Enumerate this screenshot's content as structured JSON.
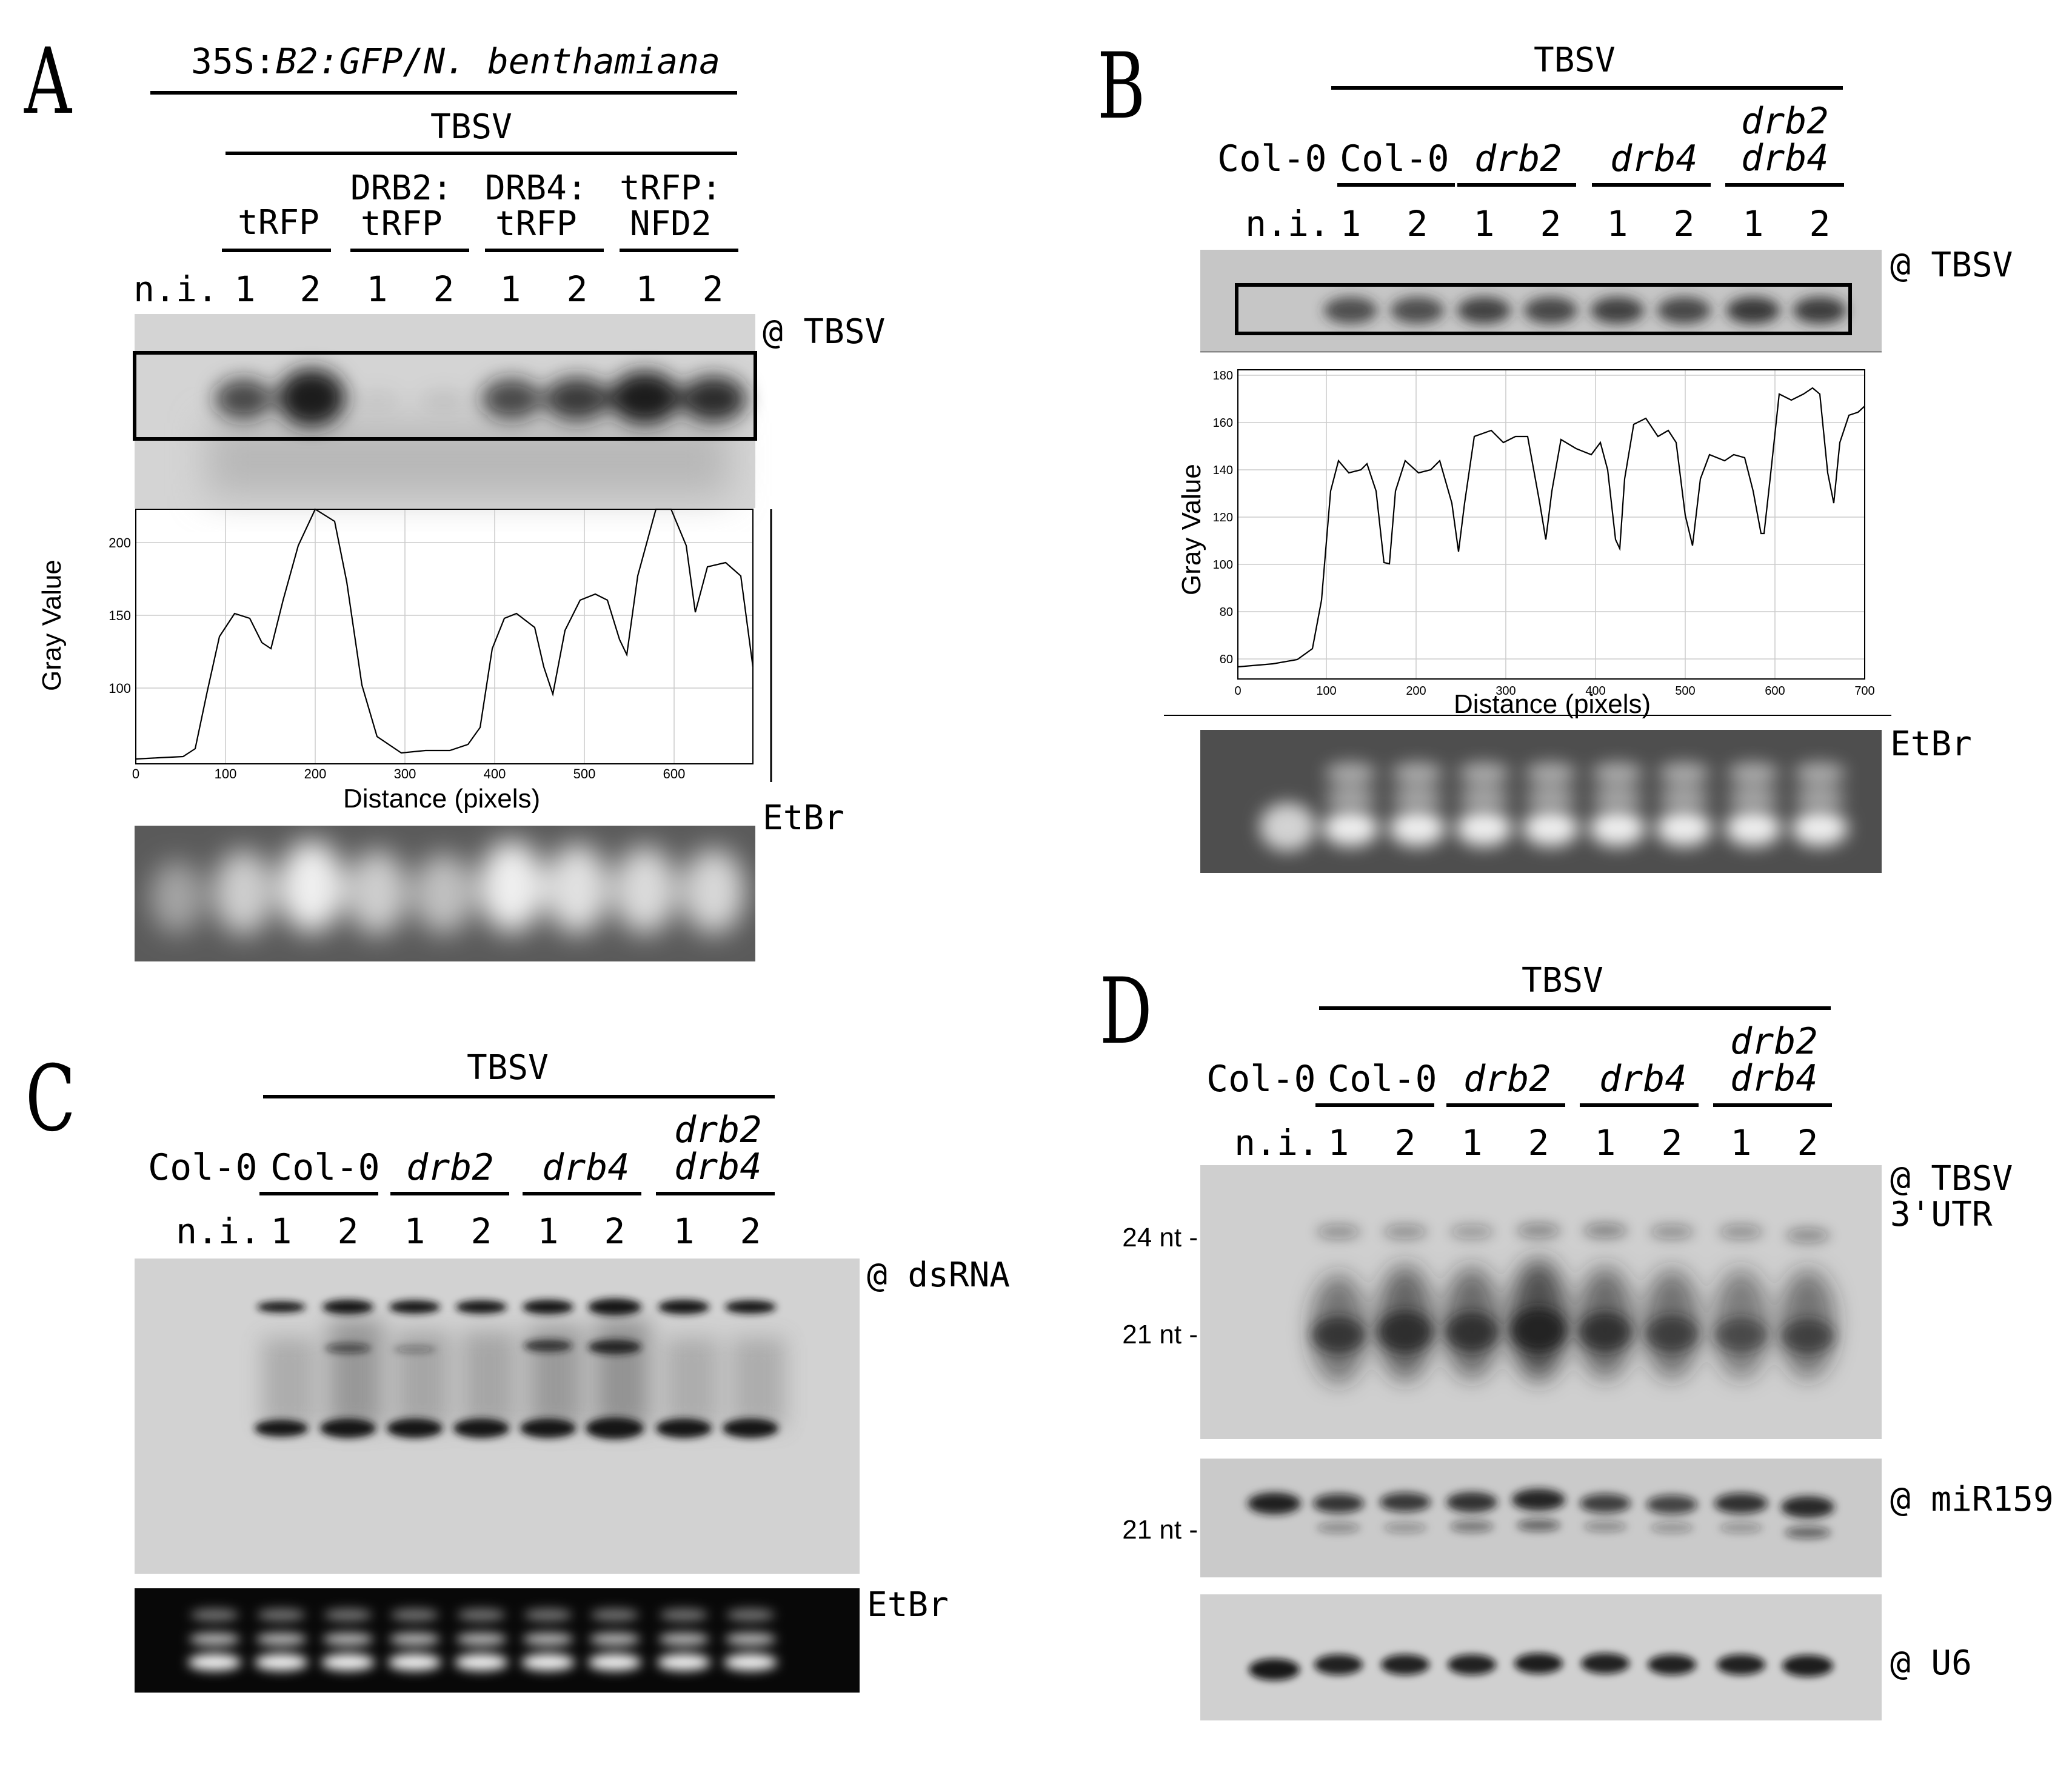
{
  "panelA": {
    "letter": "A",
    "top_label_prefix": "35S:",
    "top_label_italic": "B2:GFP/N. benthamiana",
    "virus_label": "TBSV",
    "groups": [
      "tRFP",
      "DRB2:\ntRFP",
      "DRB4:\ntRFP",
      "tRFP:\nNFD2"
    ],
    "lanes": [
      "n.i.",
      "1",
      "2",
      "1",
      "2",
      "1",
      "2",
      "1",
      "2"
    ],
    "probe": "@ TBSV",
    "stain": "EtBr",
    "profile": {
      "ylabel": "Gray Value",
      "xlabel": "Distance (pixels)",
      "xlim": [
        0,
        700
      ],
      "xticks": [
        "0",
        "100",
        "200",
        "300",
        "400",
        "500",
        "600"
      ],
      "yticks": [
        "100",
        "150",
        "200"
      ]
    },
    "band_intensity": [
      0,
      0.6,
      1.0,
      0.05,
      0.08,
      0.65,
      0.8,
      1.0,
      0.9
    ]
  },
  "panelB": {
    "letter": "B",
    "virus_label": "TBSV",
    "control": "Col-0",
    "groups": [
      "Col-0",
      "drb2",
      "drb4",
      "drb2\ndrb4"
    ],
    "lanes": [
      "n.i.",
      "1",
      "2",
      "1",
      "2",
      "1",
      "2",
      "1",
      "2"
    ],
    "probe": "@ TBSV",
    "stain": "EtBr",
    "profile": {
      "ylabel": "Gray Value",
      "xlabel": "Distance (pixels)",
      "xlim": [
        0,
        700
      ],
      "ylim": [
        55,
        182
      ],
      "xticks": [
        "0",
        "100",
        "200",
        "300",
        "400",
        "500",
        "600",
        "700"
      ],
      "yticks": [
        "60",
        "80",
        "100",
        "120",
        "140",
        "160",
        "180"
      ]
    }
  },
  "panelC": {
    "letter": "C",
    "virus_label": "TBSV",
    "control": "Col-0",
    "groups": [
      "Col-0",
      "drb2",
      "drb4",
      "drb2\ndrb4"
    ],
    "lanes": [
      "n.i.",
      "1",
      "2",
      "1",
      "2",
      "1",
      "2",
      "1",
      "2"
    ],
    "probe": "@ dsRNA",
    "stain": "EtBr"
  },
  "panelD": {
    "letter": "D",
    "virus_label": "TBSV",
    "control": "Col-0",
    "groups": [
      "Col-0",
      "drb2",
      "drb4",
      "drb2\ndrb4"
    ],
    "lanes": [
      "n.i.",
      "1",
      "2",
      "1",
      "2",
      "1",
      "2",
      "1",
      "2"
    ],
    "probe1": "@ TBSV\n3'UTR",
    "probe2": "@ miR159",
    "probe3": "@ U6",
    "markers": [
      "24 nt -",
      "21 nt -",
      "21 nt -"
    ]
  }
}
